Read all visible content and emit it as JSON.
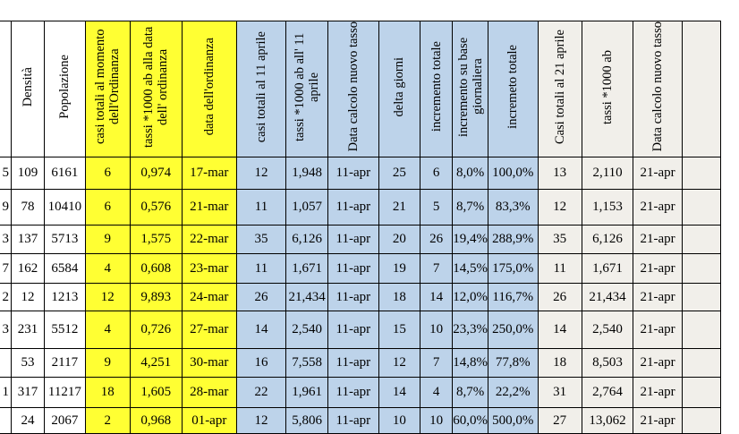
{
  "headers": {
    "densita": "Densità",
    "popolazione": "Popolazione",
    "casi_ordinanza": "casi totali al momento dell'Ordinanza",
    "tassi_ordinanza": "tassi *1000 ab alla data dell' ordinanza",
    "data_ordinanza": "data dell'ordinanza",
    "casi_11_aprile": "casi totali al 11 aprile",
    "tassi_11_aprile": "tassi *1000 ab all' 11 aprile",
    "data_calcolo_1": "Data calcolo nuovo tasso",
    "delta_giorni": "delta giorni",
    "incremento_totale": "incremento totale",
    "incremento_base": "incremento su base giornaliera",
    "incremeto_totale": "incremeto totale",
    "casi_21_aprile": "Casi totali al 21 aprile",
    "tassi_1000": "tassi *1000 ab",
    "data_calcolo_2": "Data calcolo nuovo tasso"
  },
  "rows": [
    {
      "cut": "5",
      "densita": "109",
      "pop": "6161",
      "casi_ord": "6",
      "tassi_ord": "0,974",
      "data_ord": "17-mar",
      "casi_11": "12",
      "tassi_11": "1,948",
      "data_calc": "11-apr",
      "delta": "25",
      "incr": "6",
      "incr_g": "8,0%",
      "incr_tot": "100,0%",
      "casi_21": "13",
      "tassi_21": "2,110",
      "data_21": "21-apr"
    },
    {
      "cut": "9",
      "densita": "78",
      "pop": "10410",
      "casi_ord": "6",
      "tassi_ord": "0,576",
      "data_ord": "21-mar",
      "casi_11": "11",
      "tassi_11": "1,057",
      "data_calc": "11-apr",
      "delta": "21",
      "incr": "5",
      "incr_g": "8,7%",
      "incr_tot": "83,3%",
      "casi_21": "12",
      "tassi_21": "1,153",
      "data_21": "21-apr"
    },
    {
      "cut": "3",
      "densita": "137",
      "pop": "5713",
      "casi_ord": "9",
      "tassi_ord": "1,575",
      "data_ord": "22-mar",
      "casi_11": "35",
      "tassi_11": "6,126",
      "data_calc": "11-apr",
      "delta": "20",
      "incr": "26",
      "incr_g": "19,4%",
      "incr_tot": "288,9%",
      "casi_21": "35",
      "tassi_21": "6,126",
      "data_21": "21-apr"
    },
    {
      "cut": "7",
      "densita": "162",
      "pop": "6584",
      "casi_ord": "4",
      "tassi_ord": "0,608",
      "data_ord": "23-mar",
      "casi_11": "11",
      "tassi_11": "1,671",
      "data_calc": "11-apr",
      "delta": "19",
      "incr": "7",
      "incr_g": "14,5%",
      "incr_tot": "175,0%",
      "casi_21": "11",
      "tassi_21": "1,671",
      "data_21": "21-apr"
    },
    {
      "cut": "2",
      "densita": "12",
      "pop": "1213",
      "casi_ord": "12",
      "tassi_ord": "9,893",
      "data_ord": "24-mar",
      "casi_11": "26",
      "tassi_11": "21,434",
      "data_calc": "11-apr",
      "delta": "18",
      "incr": "14",
      "incr_g": "12,0%",
      "incr_tot": "116,7%",
      "casi_21": "26",
      "tassi_21": "21,434",
      "data_21": "21-apr"
    },
    {
      "cut": "3",
      "densita": "231",
      "pop": "5512",
      "casi_ord": "4",
      "tassi_ord": "0,726",
      "data_ord": "27-mar",
      "casi_11": "14",
      "tassi_11": "2,540",
      "data_calc": "11-apr",
      "delta": "15",
      "incr": "10",
      "incr_g": "23,3%",
      "incr_tot": "250,0%",
      "casi_21": "14",
      "tassi_21": "2,540",
      "data_21": "21-apr"
    },
    {
      "cut": "",
      "densita": "53",
      "pop": "2117",
      "casi_ord": "9",
      "tassi_ord": "4,251",
      "data_ord": "30-mar",
      "casi_11": "16",
      "tassi_11": "7,558",
      "data_calc": "11-apr",
      "delta": "12",
      "incr": "7",
      "incr_g": "14,8%",
      "incr_tot": "77,8%",
      "casi_21": "18",
      "tassi_21": "8,503",
      "data_21": "21-apr"
    },
    {
      "cut": "1",
      "densita": "317",
      "pop": "11217",
      "casi_ord": "18",
      "tassi_ord": "1,605",
      "data_ord": "28-mar",
      "casi_11": "22",
      "tassi_11": "1,961",
      "data_calc": "11-apr",
      "delta": "14",
      "incr": "4",
      "incr_g": "8,7%",
      "incr_tot": "22,2%",
      "casi_21": "31",
      "tassi_21": "2,764",
      "data_21": "21-apr"
    },
    {
      "cut": "",
      "densita": "24",
      "pop": "2067",
      "casi_ord": "2",
      "tassi_ord": "0,968",
      "data_ord": "01-apr",
      "casi_11": "12",
      "tassi_11": "5,806",
      "data_calc": "11-apr",
      "delta": "10",
      "incr": "10",
      "incr_g": "60,0%",
      "incr_tot": "500,0%",
      "casi_21": "27",
      "tassi_21": "13,062",
      "data_21": "21-apr"
    }
  ]
}
